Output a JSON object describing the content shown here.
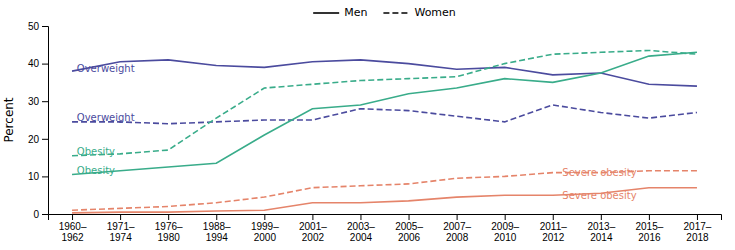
{
  "chart_data": {
    "type": "line",
    "ylabel": "Percent",
    "categories": [
      "1960–1962",
      "1971–1974",
      "1976–1980",
      "1988–1994",
      "1999–2000",
      "2001–2002",
      "2003–2004",
      "2005–2006",
      "2007–2008",
      "2009–2010",
      "2011–2012",
      "2013–2014",
      "2015–2016",
      "2017–2018"
    ],
    "series": [
      {
        "name": "Men",
        "color": "#4B4B9E",
        "line_style": "solid",
        "values": [
          38.0,
          40.5,
          41.0,
          39.5,
          39.0,
          40.5,
          41.0,
          40.0,
          38.5,
          39.0,
          37.0,
          37.5,
          34.5,
          34.0
        ]
      },
      {
        "name": "Women",
        "color": "#4B4B9E",
        "line_style": "dashed",
        "values": [
          24.5,
          24.5,
          24.0,
          24.5,
          25.0,
          25.0,
          28.0,
          27.5,
          26.0,
          24.5,
          29.0,
          27.0,
          25.5,
          27.0
        ]
      },
      {
        "name": "Men",
        "color": "#39AC8A",
        "line_style": "solid",
        "values": [
          10.5,
          11.5,
          12.5,
          13.5,
          21.0,
          28.0,
          29.0,
          32.0,
          33.5,
          36.0,
          35.0,
          37.5,
          42.0,
          43.0
        ]
      },
      {
        "name": "Women",
        "color": "#39AC8A",
        "line_style": "dashed",
        "values": [
          15.5,
          16.0,
          17.0,
          25.5,
          33.5,
          34.5,
          35.5,
          36.0,
          36.5,
          40.0,
          42.5,
          43.0,
          43.5,
          42.5
        ]
      },
      {
        "name": "Men",
        "color": "#E5846A",
        "line_style": "solid",
        "values": [
          0.3,
          0.5,
          0.5,
          0.8,
          1.0,
          3.0,
          3.0,
          3.5,
          4.5,
          5.0,
          5.0,
          5.5,
          7.0,
          7.0
        ]
      },
      {
        "name": "Women",
        "color": "#E5846A",
        "line_style": "dashed",
        "values": [
          1.0,
          1.5,
          2.0,
          3.0,
          4.5,
          7.0,
          7.5,
          8.0,
          9.5,
          10.0,
          11.0,
          11.0,
          11.5,
          11.5
        ]
      }
    ],
    "annotations": [
      {
        "text": "Overweight",
        "x": 0.1,
        "y": 38.5,
        "color": "#4B4B9E"
      },
      {
        "text": "Overweight",
        "x": 0.1,
        "y": 25.5,
        "color": "#4B4B9E"
      },
      {
        "text": "Obesity",
        "x": 0.1,
        "y": 11.5,
        "color": "#39AC8A"
      },
      {
        "text": "Obesity",
        "x": 0.1,
        "y": 16.5,
        "color": "#39AC8A"
      },
      {
        "text": "Severe obesity",
        "x": 10.2,
        "y": 10.8,
        "color": "#E5846A"
      },
      {
        "text": "Severe obesity",
        "x": 10.2,
        "y": 4.8,
        "color": "#E5846A"
      }
    ],
    "ylim": [
      0,
      50
    ],
    "yticks": [
      0,
      10,
      20,
      30,
      40,
      50
    ],
    "grid": false,
    "legend": "top"
  }
}
